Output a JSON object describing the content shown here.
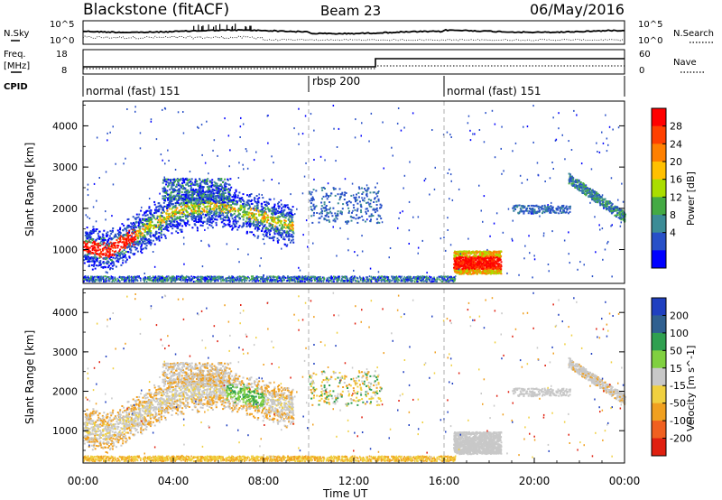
{
  "header": {
    "title": "Blackstone (fitACF)",
    "beam": "Beam 23",
    "date": "06/May/2016"
  },
  "top_panels": {
    "nsky_label": "N.Sky",
    "nsearch_label": "N.Search",
    "nsky_ticks": [
      "10^5",
      "10^0"
    ],
    "nsky_right_ticks": [
      "10^5",
      "10^0"
    ],
    "freq_label_1": "Freq.",
    "freq_label_2": "[MHz]",
    "freq_ticks": [
      "18",
      "8"
    ],
    "nave_label": "Nave",
    "nave_ticks": [
      "60",
      "0"
    ],
    "cpid_label": "CPID",
    "cpid_segments": [
      {
        "label": "normal (fast) 151",
        "start_h": 0
      },
      {
        "label": "rbsp 200",
        "start_h": 10
      },
      {
        "label": "normal (fast) 151",
        "start_h": 16
      }
    ]
  },
  "chart_data": [
    {
      "type": "heatmap",
      "title": "",
      "xlabel": "",
      "ylabel": "Slant Range [km]",
      "colorbar_label": "Power [dB]",
      "colorbar_ticks": [
        "28",
        "24",
        "20",
        "16",
        "12",
        "8",
        "4"
      ],
      "colorbar_colors": [
        "#ff0000",
        "#ff4000",
        "#ff8000",
        "#ffc000",
        "#aadd00",
        "#44aa44",
        "#3c8c96",
        "#2850c8",
        "#0000ff"
      ],
      "x_range_hours": [
        0,
        24
      ],
      "y_range_km": [
        180,
        4600
      ],
      "y_ticks": [
        "4000",
        "3000",
        "2000",
        "1000"
      ],
      "x_ticks": [
        "00:00",
        "04:00",
        "08:00",
        "12:00",
        "16:00",
        "20:00",
        "00:00"
      ]
    },
    {
      "type": "heatmap",
      "title": "",
      "xlabel": "Time UT",
      "ylabel": "Slant Range [km]",
      "colorbar_label": "Velocity [m s^-1]",
      "colorbar_ticks": [
        "200",
        "100",
        "50",
        "15",
        "-15",
        "-50",
        "-100",
        "-200"
      ],
      "colorbar_colors": [
        "#2040c0",
        "#306090",
        "#30a050",
        "#80d040",
        "#c8c8c8",
        "#f0d040",
        "#f0a020",
        "#f06020",
        "#e02010"
      ],
      "x_range_hours": [
        0,
        24
      ],
      "y_range_km": [
        180,
        4600
      ],
      "y_ticks": [
        "4000",
        "3000",
        "2000",
        "1000"
      ],
      "x_ticks": [
        "00:00",
        "04:00",
        "08:00",
        "12:00",
        "16:00",
        "20:00",
        "00:00"
      ]
    }
  ]
}
